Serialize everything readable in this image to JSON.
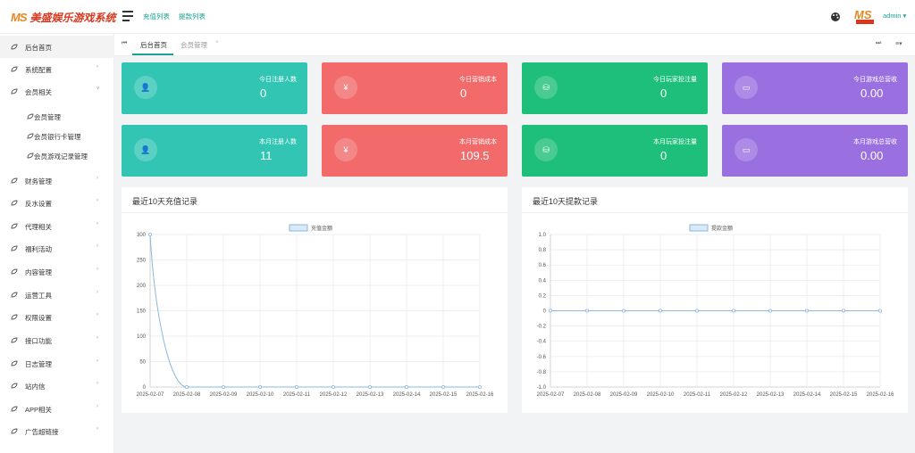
{
  "app": {
    "logo_mark": "MS",
    "title": "美盛娱乐游戏系统"
  },
  "topnav": {
    "links": [
      "充值列表",
      "提款列表"
    ],
    "user": "admin ▾",
    "avatar_label": "MS"
  },
  "sidebar": {
    "items": [
      {
        "label": "后台首页",
        "arrow": "",
        "active": true
      },
      {
        "label": "系统配置",
        "arrow": "›"
      },
      {
        "label": "会员相关",
        "arrow": "˅"
      },
      {
        "label": "会员管理",
        "sub": true
      },
      {
        "label": "会员银行卡管理",
        "sub": true
      },
      {
        "label": "会员游戏记录管理",
        "sub": true
      },
      {
        "label": "财务管理",
        "arrow": "›"
      },
      {
        "label": "反水设置",
        "arrow": "›"
      },
      {
        "label": "代理相关",
        "arrow": "›"
      },
      {
        "label": "福利活动",
        "arrow": "›"
      },
      {
        "label": "内容管理",
        "arrow": "›"
      },
      {
        "label": "运营工具",
        "arrow": "›"
      },
      {
        "label": "权限设置",
        "arrow": "›"
      },
      {
        "label": "接口功能",
        "arrow": "›"
      },
      {
        "label": "日志管理",
        "arrow": "›"
      },
      {
        "label": "站内信",
        "arrow": "›"
      },
      {
        "label": "APP相关",
        "arrow": "›"
      },
      {
        "label": "广告超链接",
        "arrow": "›"
      }
    ]
  },
  "tabs": {
    "items": [
      "后台首页",
      "会员管理"
    ],
    "close": "×",
    "prev": "⏮",
    "next": "⏭",
    "menu": "≡▾"
  },
  "cards": [
    {
      "label": "今日注册人数",
      "value": "0",
      "icon": "user-icon",
      "glyph": "👤",
      "color": "#32c5b4"
    },
    {
      "label": "今日营销成本",
      "value": "0",
      "icon": "yen-icon",
      "glyph": "¥",
      "color": "#f26a6a"
    },
    {
      "label": "今日玩家投注量",
      "value": "0",
      "icon": "bet-icon",
      "glyph": "⛁",
      "color": "#1dbf7a"
    },
    {
      "label": "今日游戏总营收",
      "value": "0.00",
      "icon": "money-icon",
      "glyph": "▭",
      "color": "#9a6fe0"
    },
    {
      "label": "本月注册人数",
      "value": "11",
      "icon": "user-icon",
      "glyph": "👤",
      "color": "#32c5b4"
    },
    {
      "label": "本月营销成本",
      "value": "109.5",
      "icon": "yen-icon",
      "glyph": "¥",
      "color": "#f26a6a"
    },
    {
      "label": "本月玩家投注量",
      "value": "0",
      "icon": "bet-icon",
      "glyph": "⛁",
      "color": "#1dbf7a"
    },
    {
      "label": "本月游戏总营收",
      "value": "0.00",
      "icon": "money-icon",
      "glyph": "▭",
      "color": "#9a6fe0"
    }
  ],
  "chart_data": [
    {
      "type": "line",
      "title": "最近10天充值记录",
      "x": [
        "2025-02-07",
        "2025-02-08",
        "2025-02-09",
        "2025-02-10",
        "2025-02-11",
        "2025-02-12",
        "2025-02-13",
        "2025-02-14",
        "2025-02-15",
        "2025-02-16"
      ],
      "series": [
        {
          "name": "充值金额",
          "values": [
            300,
            0,
            0,
            0,
            0,
            0,
            0,
            0,
            0,
            0
          ]
        }
      ],
      "ylim": [
        0,
        300
      ],
      "yticks": [
        0,
        50,
        100,
        150,
        200,
        250,
        300
      ],
      "legend": "top-center",
      "grid": true,
      "color": "#8ab8e0"
    },
    {
      "type": "line",
      "title": "最近10天提款记录",
      "x": [
        "2025-02-07",
        "2025-02-08",
        "2025-02-09",
        "2025-02-10",
        "2025-02-11",
        "2025-02-12",
        "2025-02-13",
        "2025-02-14",
        "2025-02-15",
        "2025-02-16"
      ],
      "series": [
        {
          "name": "提款金额",
          "values": [
            0,
            0,
            0,
            0,
            0,
            0,
            0,
            0,
            0,
            0
          ]
        }
      ],
      "ylim": [
        -1,
        1
      ],
      "yticks": [
        "-1.0",
        "-0.8",
        "-0.6",
        "-0.4",
        "-0.2",
        "0",
        "0.2",
        "0.4",
        "0.6",
        "0.8",
        "1.0"
      ],
      "legend": "top-center",
      "grid": true,
      "color": "#8ab8e0"
    }
  ]
}
